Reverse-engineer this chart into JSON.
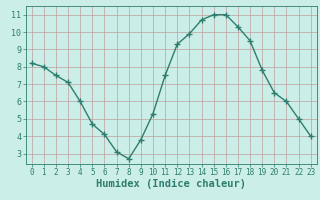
{
  "x": [
    0,
    1,
    2,
    3,
    4,
    5,
    6,
    7,
    8,
    9,
    10,
    11,
    12,
    13,
    14,
    15,
    16,
    17,
    18,
    19,
    20,
    21,
    22,
    23
  ],
  "y": [
    8.2,
    8.0,
    7.5,
    7.1,
    6.0,
    4.7,
    4.1,
    3.1,
    2.7,
    3.8,
    5.3,
    7.5,
    9.3,
    9.9,
    10.7,
    11.0,
    11.0,
    10.3,
    9.5,
    7.8,
    6.5,
    6.0,
    5.0,
    4.0
  ],
  "line_color": "#2e7d6e",
  "marker": "+",
  "marker_size": 4,
  "line_width": 1.0,
  "xlabel": "Humidex (Indice chaleur)",
  "xlabel_fontsize": 7.5,
  "xlim": [
    -0.5,
    23.5
  ],
  "ylim": [
    2.4,
    11.5
  ],
  "yticks": [
    3,
    4,
    5,
    6,
    7,
    8,
    9,
    10,
    11
  ],
  "xticks": [
    0,
    1,
    2,
    3,
    4,
    5,
    6,
    7,
    8,
    9,
    10,
    11,
    12,
    13,
    14,
    15,
    16,
    17,
    18,
    19,
    20,
    21,
    22,
    23
  ],
  "bg_color": "#cceee8",
  "grid_color": "#c0a0a0",
  "tick_color": "#2e7d6e",
  "axis_color": "#2e7d6e",
  "label_color": "#2e7d6e"
}
